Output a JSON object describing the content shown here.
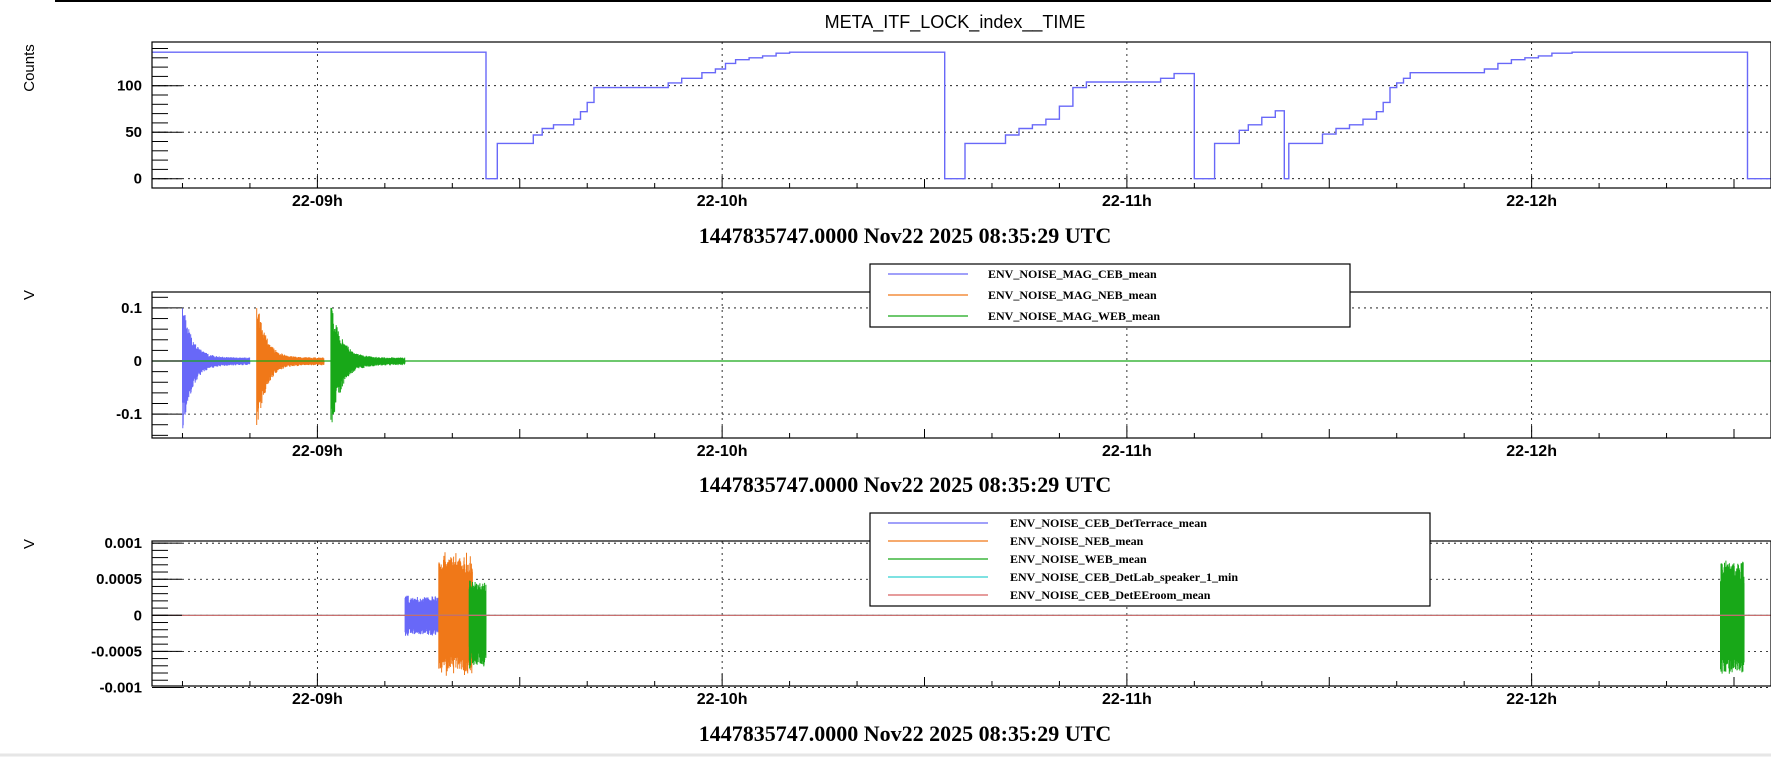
{
  "colors": {
    "series_blue": "#6868f8",
    "series_orange": "#f07818",
    "series_green": "#18a818",
    "series_cyan": "#30d0d0",
    "series_red": "#d86060"
  },
  "chart_data": [
    {
      "type": "line",
      "title": "META_ITF_LOCK_index__TIME",
      "ylabel": "Counts",
      "xlabel": "1447835747.0000 Nov22 2025 08:35:29 UTC",
      "xlim": [
        "2025-11-22T08:35:29Z",
        "2025-11-22T12:35:29Z"
      ],
      "ylim": [
        -10,
        147
      ],
      "grid": true,
      "y_ticks": [
        0,
        50,
        100
      ],
      "y_tick_labels": [
        "0",
        "50",
        "100"
      ],
      "x_ticks": [
        "2025-11-22T09:00:00Z",
        "2025-11-22T10:00:00Z",
        "2025-11-22T11:00:00Z",
        "2025-11-22T12:00:00Z"
      ],
      "x_tick_labels": [
        "22-09h",
        "22-10h",
        "22-11h",
        "22-12h"
      ],
      "series": [
        {
          "color": "#6868f8",
          "step": true,
          "x": [
            "2025-11-22T08:35:29Z",
            "2025-11-22T09:25:00Z",
            "2025-11-22T09:26:40Z",
            "2025-11-22T09:30:50Z",
            "2025-11-22T09:32:00Z",
            "2025-11-22T09:33:20Z",
            "2025-11-22T09:35:00Z",
            "2025-11-22T09:37:00Z",
            "2025-11-22T09:38:00Z",
            "2025-11-22T09:39:00Z",
            "2025-11-22T09:40:00Z",
            "2025-11-22T09:41:00Z",
            "2025-11-22T09:52:00Z",
            "2025-11-22T09:54:00Z",
            "2025-11-22T09:57:00Z",
            "2025-11-22T09:59:00Z",
            "2025-11-22T10:00:30Z",
            "2025-11-22T10:02:00Z",
            "2025-11-22T10:04:00Z",
            "2025-11-22T10:06:00Z",
            "2025-11-22T10:08:00Z",
            "2025-11-22T10:10:00Z",
            "2025-11-22T10:33:00Z",
            "2025-11-22T10:36:00Z",
            "2025-11-22T10:40:00Z",
            "2025-11-22T10:42:00Z",
            "2025-11-22T10:44:00Z",
            "2025-11-22T10:46:00Z",
            "2025-11-22T10:48:00Z",
            "2025-11-22T10:50:00Z",
            "2025-11-22T10:52:00Z",
            "2025-11-22T10:54:00Z",
            "2025-11-22T11:03:00Z",
            "2025-11-22T11:05:00Z",
            "2025-11-22T11:07:00Z",
            "2025-11-22T11:10:00Z",
            "2025-11-22T11:13:00Z",
            "2025-11-22T11:15:00Z",
            "2025-11-22T11:16:40Z",
            "2025-11-22T11:18:00Z",
            "2025-11-22T11:20:00Z",
            "2025-11-22T11:22:00Z",
            "2025-11-22T11:23:20Z",
            "2025-11-22T11:24:00Z",
            "2025-11-22T11:26:00Z",
            "2025-11-22T11:29:00Z",
            "2025-11-22T11:31:00Z",
            "2025-11-22T11:33:00Z",
            "2025-11-22T11:35:00Z",
            "2025-11-22T11:37:00Z",
            "2025-11-22T11:38:00Z",
            "2025-11-22T11:39:00Z",
            "2025-11-22T11:40:00Z",
            "2025-11-22T11:41:00Z",
            "2025-11-22T11:42:00Z",
            "2025-11-22T11:53:00Z",
            "2025-11-22T11:55:00Z",
            "2025-11-22T11:57:00Z",
            "2025-11-22T11:59:00Z",
            "2025-11-22T12:01:00Z",
            "2025-11-22T12:03:00Z",
            "2025-11-22T12:06:00Z",
            "2025-11-22T12:09:00Z",
            "2025-11-22T12:32:00Z",
            "2025-11-22T12:35:29Z"
          ],
          "y": [
            136,
            0,
            38,
            38,
            47,
            54,
            58,
            58,
            64,
            72,
            82,
            98,
            103,
            108,
            114,
            118,
            124,
            128,
            130,
            132,
            135,
            136,
            0,
            38,
            38,
            47,
            54,
            58,
            64,
            78,
            98,
            104,
            104,
            108,
            113,
            0,
            38,
            38,
            52,
            58,
            66,
            73,
            0,
            38,
            38,
            48,
            54,
            58,
            64,
            72,
            82,
            98,
            103,
            108,
            114,
            118,
            124,
            128,
            130,
            132,
            135,
            136,
            136,
            0,
            0
          ]
        }
      ]
    },
    {
      "type": "line",
      "ylabel": "V",
      "xlabel": "1447835747.0000 Nov22 2025 08:35:29 UTC",
      "xlim": [
        "2025-11-22T08:35:29Z",
        "2025-11-22T12:35:29Z"
      ],
      "ylim": [
        -0.145,
        0.13
      ],
      "grid": true,
      "legend_position": "top-center",
      "y_ticks": [
        -0.1,
        0,
        0.1
      ],
      "y_tick_labels": [
        "-0.1",
        "0",
        "0.1"
      ],
      "x_tick_labels": [
        "22-09h",
        "22-10h",
        "22-11h",
        "22-12h"
      ],
      "series": [
        {
          "name": "ENV_NOISE_MAG_CEB_mean",
          "color": "#6868f8",
          "burst_start": "2025-11-22T08:40:00Z",
          "burst_end": "2025-11-22T08:50:00Z",
          "peak": 0.11,
          "trough": -0.13
        },
        {
          "name": "ENV_NOISE_MAG_NEB_mean",
          "color": "#f07818",
          "burst_start": "2025-11-22T08:51:00Z",
          "burst_end": "2025-11-22T09:01:00Z",
          "peak": 0.11,
          "trough": -0.13
        },
        {
          "name": "ENV_NOISE_MAG_WEB_mean",
          "color": "#18a818",
          "burst_start": "2025-11-22T09:02:00Z",
          "burst_end": "2025-11-22T09:13:00Z",
          "peak": 0.11,
          "trough": -0.13
        }
      ]
    },
    {
      "type": "line",
      "ylabel": "V",
      "xlabel": "1447835747.0000 Nov22 2025 08:35:29 UTC",
      "xlim": [
        "2025-11-22T08:35:29Z",
        "2025-11-22T12:35:29Z"
      ],
      "ylim": [
        -0.00098,
        0.00103
      ],
      "grid": true,
      "legend_position": "top-center",
      "y_ticks": [
        -0.001,
        -0.0005,
        0,
        0.0005,
        0.001
      ],
      "y_tick_labels": [
        "-0.001",
        "-0.0005",
        "0",
        "0.0005",
        "0.001"
      ],
      "x_tick_labels": [
        "22-09h",
        "22-10h",
        "22-11h",
        "22-12h"
      ],
      "series": [
        {
          "name": "ENV_NOISE_CEB_DetTerrace_mean",
          "color": "#6868f8",
          "burst_start": "2025-11-22T09:13:00Z",
          "burst_end": "2025-11-22T09:18:00Z",
          "peak": 0.00028,
          "trough": -0.0003
        },
        {
          "name": "ENV_NOISE_NEB_mean",
          "color": "#f07818",
          "burst_start": "2025-11-22T09:18:00Z",
          "burst_end": "2025-11-22T09:23:00Z",
          "peak": 0.0009,
          "trough": -0.00085
        },
        {
          "name": "ENV_NOISE_WEB_mean",
          "color": "#18a818",
          "burst_start": "2025-11-22T09:22:30Z",
          "burst_end": "2025-11-22T09:25:00Z",
          "peak": 0.0005,
          "trough": -0.00075,
          "burst2_start": "2025-11-22T12:28:00Z",
          "burst2_end": "2025-11-22T12:31:30Z",
          "peak2": 0.0008,
          "trough2": -0.00085
        },
        {
          "name": "ENV_NOISE_CEB_DetLab_speaker_1_min",
          "color": "#30d0d0",
          "constant": 0
        },
        {
          "name": "ENV_NOISE_CEB_DetEEroom_mean",
          "color": "#d86060",
          "constant": 0
        }
      ]
    }
  ]
}
